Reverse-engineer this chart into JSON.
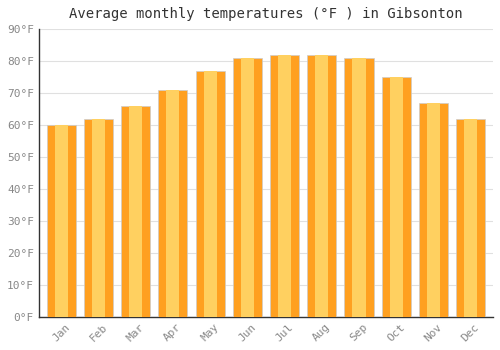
{
  "title": "Average monthly temperatures (°F ) in Gibsonton",
  "months": [
    "Jan",
    "Feb",
    "Mar",
    "Apr",
    "May",
    "Jun",
    "Jul",
    "Aug",
    "Sep",
    "Oct",
    "Nov",
    "Dec"
  ],
  "values": [
    60,
    62,
    66,
    71,
    77,
    81,
    82,
    82,
    81,
    75,
    67,
    62
  ],
  "bar_color_main": "#FFA020",
  "bar_color_light": "#FFD060",
  "bar_color_edge": "#E09010",
  "ylim": [
    0,
    90
  ],
  "yticks": [
    0,
    10,
    20,
    30,
    40,
    50,
    60,
    70,
    80,
    90
  ],
  "ytick_labels": [
    "0°F",
    "10°F",
    "20°F",
    "30°F",
    "40°F",
    "50°F",
    "60°F",
    "70°F",
    "80°F",
    "90°F"
  ],
  "background_color": "#ffffff",
  "plot_bg_color": "#ffffff",
  "grid_color": "#e0e0e0",
  "title_fontsize": 10,
  "tick_fontsize": 8,
  "bar_width": 0.78,
  "tick_color": "#888888",
  "spine_color": "#333333"
}
